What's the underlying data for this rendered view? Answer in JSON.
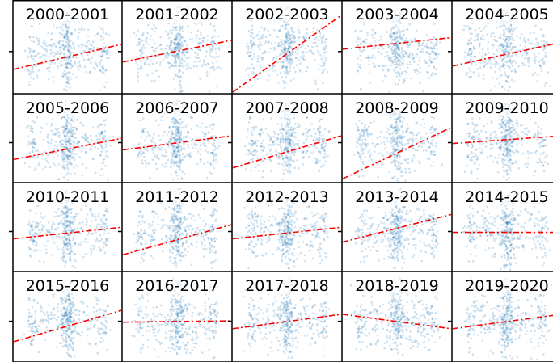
{
  "chart_data": [
    {
      "type": "scatter",
      "title": "2000-2001",
      "trend_start": 0.25,
      "trend_end": 0.62
    },
    {
      "type": "scatter",
      "title": "2001-2002",
      "trend_start": 0.36,
      "trend_end": 0.68
    },
    {
      "type": "scatter",
      "title": "2002-2003",
      "trend_start": -0.1,
      "trend_end": 1.05
    },
    {
      "type": "scatter",
      "title": "2003-2004",
      "trend_start": 0.55,
      "trend_end": 0.72
    },
    {
      "type": "scatter",
      "title": "2004-2005",
      "trend_start": 0.3,
      "trend_end": 0.65
    },
    {
      "type": "scatter",
      "title": "2005-2006",
      "trend_start": 0.25,
      "trend_end": 0.58
    },
    {
      "type": "scatter",
      "title": "2006-2007",
      "trend_start": 0.4,
      "trend_end": 0.62
    },
    {
      "type": "scatter",
      "title": "2007-2008",
      "trend_start": 0.12,
      "trend_end": 0.62
    },
    {
      "type": "scatter",
      "title": "2008-2009",
      "trend_start": -0.05,
      "trend_end": 0.75
    },
    {
      "type": "scatter",
      "title": "2009-2010",
      "trend_start": 0.5,
      "trend_end": 0.62
    },
    {
      "type": "scatter",
      "title": "2010-2011",
      "trend_start": 0.4,
      "trend_end": 0.58
    },
    {
      "type": "scatter",
      "title": "2011-2012",
      "trend_start": 0.15,
      "trend_end": 0.62
    },
    {
      "type": "scatter",
      "title": "2012-2013",
      "trend_start": 0.4,
      "trend_end": 0.58
    },
    {
      "type": "scatter",
      "title": "2013-2014",
      "trend_start": 0.35,
      "trend_end": 0.78
    },
    {
      "type": "scatter",
      "title": "2014-2015",
      "trend_start": 0.5,
      "trend_end": 0.5
    },
    {
      "type": "scatter",
      "title": "2015-2016",
      "trend_start": 0.2,
      "trend_end": 0.68
    },
    {
      "type": "scatter",
      "title": "2016-2017",
      "trend_start": 0.5,
      "trend_end": 0.52
    },
    {
      "type": "scatter",
      "title": "2017-2018",
      "trend_start": 0.4,
      "trend_end": 0.62
    },
    {
      "type": "scatter",
      "title": "2018-2019",
      "trend_start": 0.62,
      "trend_end": 0.4
    },
    {
      "type": "scatter",
      "title": "2019-2020",
      "trend_start": 0.4,
      "trend_end": 0.62
    }
  ],
  "colors": {
    "points": "#1f77b4",
    "trend": "#ff0000",
    "axes": "#000000"
  }
}
